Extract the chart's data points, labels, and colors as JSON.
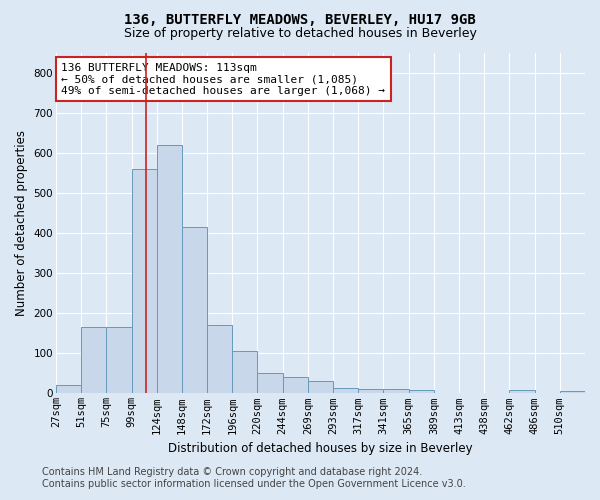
{
  "title": "136, BUTTERFLY MEADOWS, BEVERLEY, HU17 9GB",
  "subtitle": "Size of property relative to detached houses in Beverley",
  "xlabel": "Distribution of detached houses by size in Beverley",
  "ylabel": "Number of detached properties",
  "bar_values": [
    20,
    165,
    165,
    560,
    620,
    415,
    170,
    105,
    52,
    40,
    30,
    14,
    12,
    10,
    8,
    0,
    0,
    0,
    8,
    0,
    5
  ],
  "bin_labels": [
    "27sqm",
    "51sqm",
    "75sqm",
    "99sqm",
    "124sqm",
    "148sqm",
    "172sqm",
    "196sqm",
    "220sqm",
    "244sqm",
    "269sqm",
    "293sqm",
    "317sqm",
    "341sqm",
    "365sqm",
    "389sqm",
    "413sqm",
    "438sqm",
    "462sqm",
    "486sqm",
    "510sqm"
  ],
  "bar_color": "#c8d8ea",
  "bar_edge_color": "#6699bb",
  "vline_x": 113,
  "vline_color": "#cc2222",
  "ylim": [
    0,
    850
  ],
  "yticks": [
    0,
    100,
    200,
    300,
    400,
    500,
    600,
    700,
    800
  ],
  "annotation_text": "136 BUTTERFLY MEADOWS: 113sqm\n← 50% of detached houses are smaller (1,085)\n49% of semi-detached houses are larger (1,068) →",
  "annotation_box_color": "#ffffff",
  "annotation_box_edgecolor": "#cc2222",
  "footer_line1": "Contains HM Land Registry data © Crown copyright and database right 2024.",
  "footer_line2": "Contains public sector information licensed under the Open Government Licence v3.0.",
  "bg_color": "#dce8f4",
  "plot_bg_color": "#dce8f4",
  "grid_color": "#ffffff",
  "title_fontsize": 10,
  "subtitle_fontsize": 9,
  "axis_label_fontsize": 8.5,
  "tick_fontsize": 7.5,
  "annotation_fontsize": 8,
  "footer_fontsize": 7
}
